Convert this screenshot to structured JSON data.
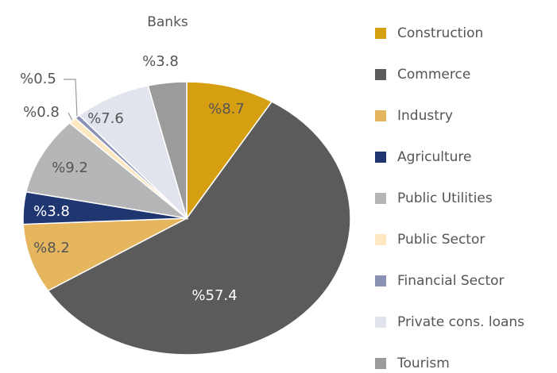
{
  "chart_data": {
    "type": "pie",
    "title": "Banks",
    "categories": [
      "Construction",
      "Commerce",
      "Industry",
      "Agriculture",
      "Public Utilities",
      "Public Sector",
      "Financial Sector",
      "Private cons. loans",
      "Tourism"
    ],
    "values": [
      8.7,
      57.4,
      8.2,
      3.8,
      9.2,
      0.8,
      0.5,
      7.6,
      3.8
    ],
    "value_labels": [
      "%8.7",
      "%57.4",
      "%8.2",
      "%3.8",
      "%9.2",
      "%0.8",
      "%0.5",
      "%7.6",
      "%3.8"
    ],
    "colors": [
      "#d69f12",
      "#5b5b5b",
      "#e5b65e",
      "#1f3670",
      "#b4b6b8",
      "#fde8c2",
      "#8a92b5",
      "#e1e4ed",
      "#9b9b9b"
    ],
    "legend": "right"
  }
}
